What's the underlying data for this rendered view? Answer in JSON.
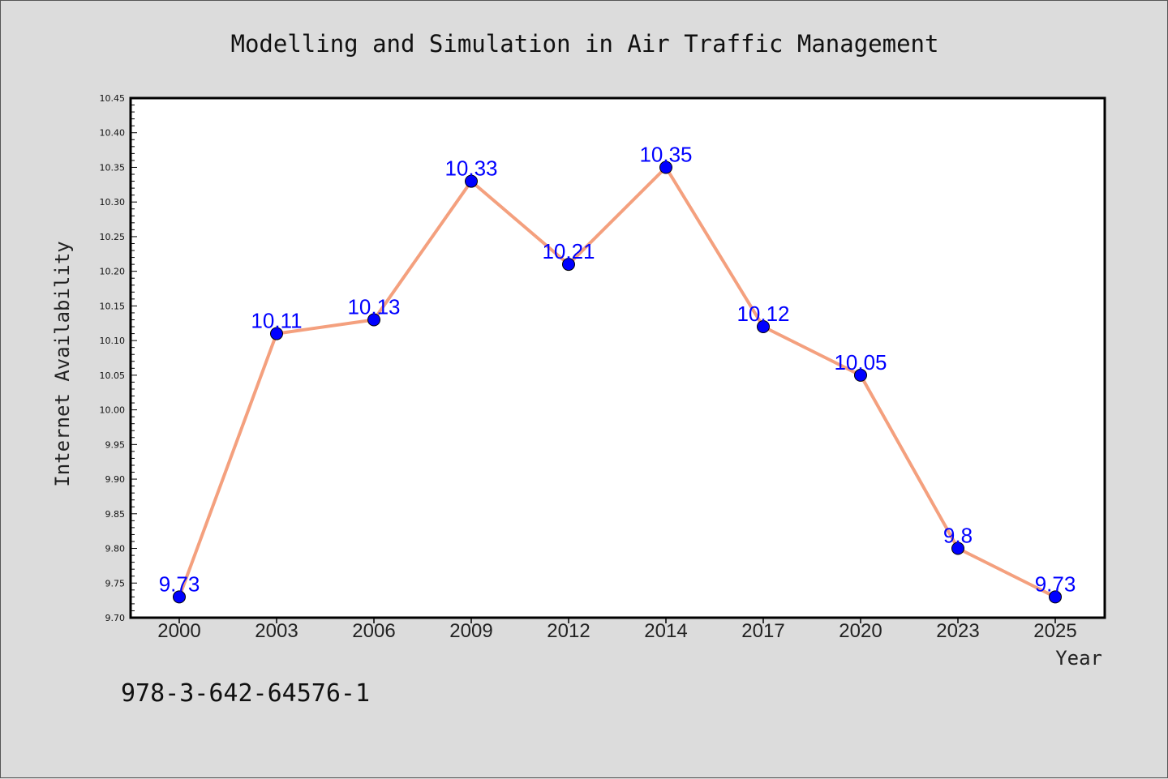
{
  "chart_data": {
    "type": "line",
    "title": "Modelling and Simulation in Air Traffic Management",
    "xlabel": "Year",
    "ylabel": "Internet Availability",
    "categories": [
      "2000",
      "2003",
      "2006",
      "2009",
      "2012",
      "2014",
      "2017",
      "2020",
      "2023",
      "2025"
    ],
    "series": [
      {
        "values": [
          9.73,
          10.11,
          10.13,
          10.33,
          10.21,
          10.35,
          10.12,
          10.05,
          9.8,
          9.73
        ],
        "data_labels": [
          "9.73",
          "10.11",
          "10.13",
          "10.33",
          "10.21",
          "10.35",
          "10.12",
          "10.05",
          "9.8",
          "9.73"
        ]
      }
    ],
    "ylim": [
      9.7,
      10.45
    ],
    "yticks": [
      "9.70",
      "9.75",
      "9.80",
      "9.85",
      "9.90",
      "9.95",
      "10.00",
      "10.05",
      "10.10",
      "10.15",
      "10.20",
      "10.25",
      "10.30",
      "10.35",
      "10.40",
      "10.45"
    ],
    "grid": false,
    "legend": "none",
    "colors": {
      "line": "#f4a07e",
      "marker": "#0000ff",
      "label": "#0000ff",
      "background": "#dcdcdc",
      "plot_area": "#ffffff"
    }
  },
  "annotation": {
    "isbn": "978-3-642-64576-1"
  }
}
